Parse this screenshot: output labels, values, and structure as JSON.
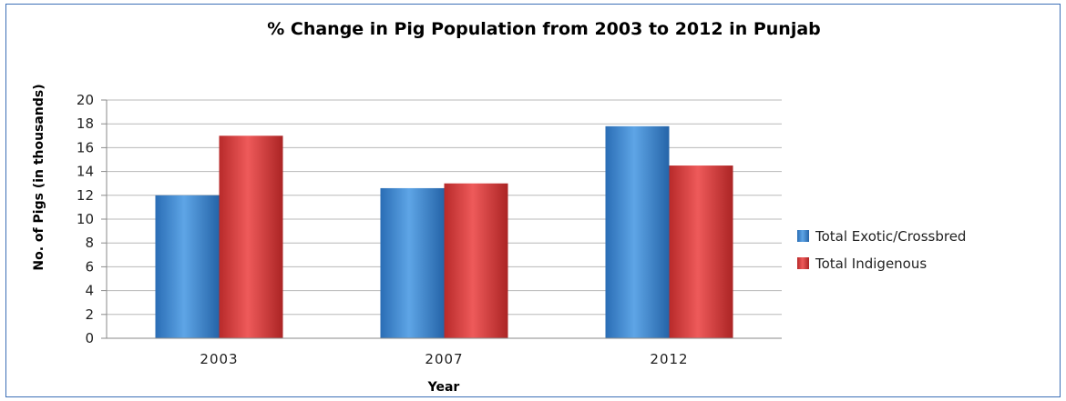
{
  "chart_data": {
    "type": "bar",
    "title": "% Change in Pig Population from 2003 to 2012 in Punjab",
    "xlabel": "Year",
    "ylabel": "No. of Pigs (in thousands)",
    "categories": [
      "2003",
      "2007",
      "2012"
    ],
    "ylim": [
      0,
      20
    ],
    "yticks": [
      "0",
      "2",
      "4",
      "6",
      "8",
      "10",
      "12",
      "14",
      "16",
      "18",
      "20"
    ],
    "grid": true,
    "legend_position": "right",
    "series": [
      {
        "name": "Total Exotic/Crossbred",
        "values": [
          12.0,
          12.6,
          17.8
        ],
        "color": "#3a86cf"
      },
      {
        "name": "Total Indigenous",
        "values": [
          17.0,
          13.0,
          14.5
        ],
        "color": "#d63b3b"
      }
    ]
  }
}
